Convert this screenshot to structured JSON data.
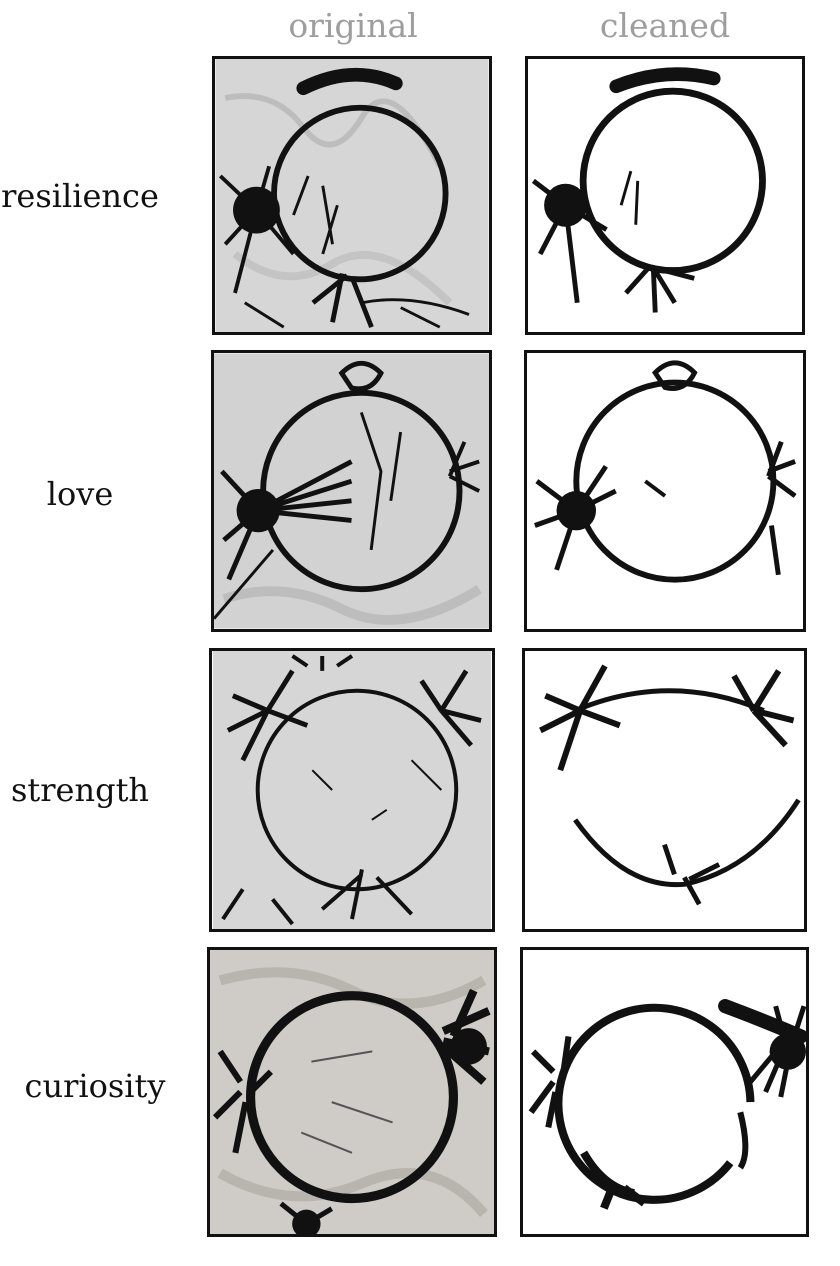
{
  "headers": {
    "original": "original",
    "cleaned": "cleaned"
  },
  "rows": [
    {
      "label": "resilience"
    },
    {
      "label": "love"
    },
    {
      "label": "strength"
    },
    {
      "label": "curiosity"
    }
  ],
  "colors": {
    "ink": "#111111",
    "header_text": "#9e9e9e",
    "original_background": "#d4d4d4",
    "cleaned_background": "#ffffff"
  }
}
